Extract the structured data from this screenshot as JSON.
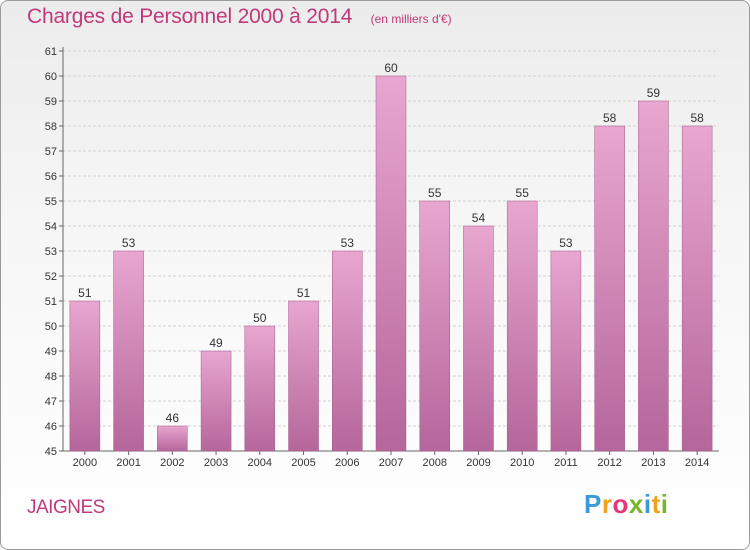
{
  "title": "Charges de Personnel 2000 à 2014",
  "unit": "(en milliers d'€)",
  "commune": "JAIGNES",
  "logo": {
    "letters": [
      "P",
      "r",
      "o",
      "x",
      "i",
      "t",
      "i"
    ],
    "colors": [
      "#3a9ad9",
      "#f0a21c",
      "#e5367a",
      "#76b72a",
      "#3a9ad9",
      "#f0a21c",
      "#76b72a"
    ]
  },
  "colors": {
    "bar_top": "#e8a6d0",
    "bar_bottom": "#b5669b",
    "text_accent": "#c0397a",
    "grid": "#d0d0d0"
  },
  "chart_data": {
    "type": "bar",
    "categories": [
      "2000",
      "2001",
      "2002",
      "2003",
      "2004",
      "2005",
      "2006",
      "2007",
      "2008",
      "2009",
      "2010",
      "2011",
      "2012",
      "2013",
      "2014"
    ],
    "values": [
      51,
      53,
      46,
      49,
      50,
      51,
      53,
      60,
      55,
      54,
      55,
      53,
      58,
      59,
      58
    ],
    "yticks": [
      45,
      46,
      47,
      48,
      49,
      50,
      51,
      52,
      53,
      54,
      55,
      56,
      57,
      58,
      59,
      60,
      61
    ],
    "ylim": [
      45,
      61
    ],
    "grid": "horizontal",
    "legend": "none"
  }
}
